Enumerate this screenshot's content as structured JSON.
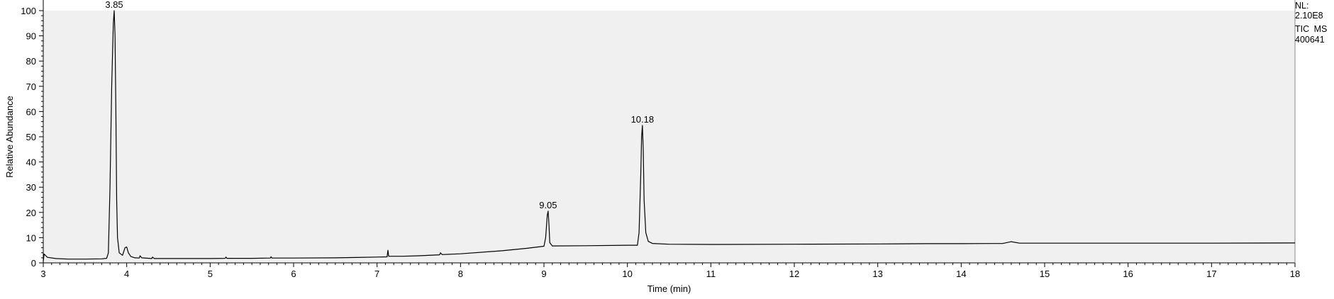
{
  "chart_data": {
    "type": "line",
    "title": "",
    "xlabel": "Time (min)",
    "ylabel": "Relative Abundance",
    "xlim": [
      3,
      18
    ],
    "ylim": [
      0,
      100
    ],
    "x_ticks": [
      "3",
      "4",
      "5",
      "6",
      "7",
      "8",
      "9",
      "10",
      "11",
      "12",
      "13",
      "14",
      "15",
      "16",
      "17",
      "18"
    ],
    "y_ticks": [
      "0",
      "10",
      "20",
      "30",
      "40",
      "50",
      "60",
      "70",
      "80",
      "90",
      "100"
    ],
    "info": [
      "NL:",
      "2.10E8",
      "TIC  MS",
      "400641"
    ],
    "peak_labels": [
      {
        "text": "3.85",
        "x": 3.85,
        "y": 100
      },
      {
        "text": "9.05",
        "x": 9.05,
        "y": 20.5
      },
      {
        "text": "10.18",
        "x": 10.18,
        "y": 54.5
      }
    ],
    "series": [
      {
        "color": "#000000",
        "points": [
          [
            3.0,
            0.5
          ],
          [
            3.01,
            3.5
          ],
          [
            3.05,
            2.2
          ],
          [
            3.15,
            1.7
          ],
          [
            3.3,
            1.5
          ],
          [
            3.5,
            1.5
          ],
          [
            3.7,
            1.6
          ],
          [
            3.76,
            1.8
          ],
          [
            3.78,
            4
          ],
          [
            3.8,
            30
          ],
          [
            3.82,
            70
          ],
          [
            3.84,
            95
          ],
          [
            3.85,
            100
          ],
          [
            3.86,
            90
          ],
          [
            3.87,
            60
          ],
          [
            3.88,
            25
          ],
          [
            3.89,
            10
          ],
          [
            3.91,
            4
          ],
          [
            3.95,
            3
          ],
          [
            3.98,
            6
          ],
          [
            4.0,
            6.3
          ],
          [
            4.02,
            4
          ],
          [
            4.05,
            2.5
          ],
          [
            4.1,
            2.0
          ],
          [
            4.15,
            1.9
          ],
          [
            4.16,
            2.8
          ],
          [
            4.18,
            2.0
          ],
          [
            4.3,
            1.7
          ],
          [
            4.31,
            2.3
          ],
          [
            4.33,
            1.7
          ],
          [
            4.6,
            1.7
          ],
          [
            5.0,
            1.7
          ],
          [
            5.18,
            1.8
          ],
          [
            5.19,
            2.3
          ],
          [
            5.2,
            1.8
          ],
          [
            5.5,
            1.8
          ],
          [
            5.72,
            1.9
          ],
          [
            5.73,
            2.4
          ],
          [
            5.74,
            1.9
          ],
          [
            6.0,
            1.9
          ],
          [
            6.5,
            2.0
          ],
          [
            7.0,
            2.3
          ],
          [
            7.12,
            2.4
          ],
          [
            7.13,
            5.0
          ],
          [
            7.14,
            2.6
          ],
          [
            7.3,
            2.6
          ],
          [
            7.5,
            2.8
          ],
          [
            7.75,
            3.2
          ],
          [
            7.76,
            4.0
          ],
          [
            7.78,
            3.3
          ],
          [
            8.0,
            3.6
          ],
          [
            8.5,
            4.8
          ],
          [
            8.8,
            5.8
          ],
          [
            9.0,
            6.6
          ],
          [
            9.02,
            10
          ],
          [
            9.04,
            19
          ],
          [
            9.05,
            20.5
          ],
          [
            9.06,
            15
          ],
          [
            9.07,
            8
          ],
          [
            9.1,
            6.7
          ],
          [
            9.5,
            6.8
          ],
          [
            10.0,
            7.0
          ],
          [
            10.12,
            7.0
          ],
          [
            10.14,
            12
          ],
          [
            10.16,
            35
          ],
          [
            10.17,
            50
          ],
          [
            10.18,
            54.5
          ],
          [
            10.19,
            45
          ],
          [
            10.2,
            25
          ],
          [
            10.22,
            12
          ],
          [
            10.25,
            8.5
          ],
          [
            10.3,
            7.7
          ],
          [
            10.5,
            7.4
          ],
          [
            11.0,
            7.3
          ],
          [
            12.0,
            7.4
          ],
          [
            13.0,
            7.5
          ],
          [
            13.6,
            7.6
          ],
          [
            14.0,
            7.6
          ],
          [
            14.5,
            7.7
          ],
          [
            14.6,
            8.4
          ],
          [
            14.7,
            7.8
          ],
          [
            15.0,
            7.8
          ],
          [
            16.0,
            7.8
          ],
          [
            17.0,
            7.8
          ],
          [
            18.0,
            7.9
          ]
        ]
      }
    ]
  }
}
